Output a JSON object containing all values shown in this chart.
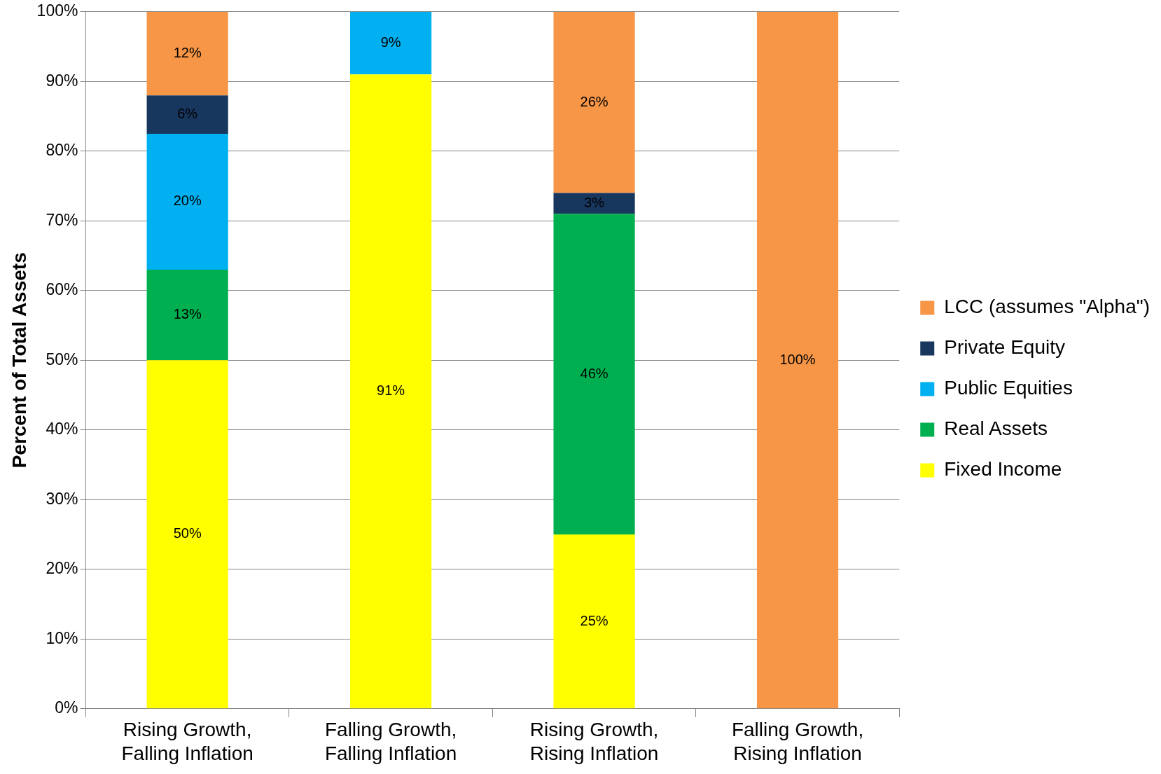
{
  "chart_data": {
    "type": "bar",
    "stacked": true,
    "ylabel": "Percent of Total Assets",
    "categories": [
      "Rising Growth, Falling Inflation",
      "Falling Growth, Falling Inflation",
      "Rising Growth, Rising Inflation",
      "Falling Growth, Rising Inflation"
    ],
    "series": [
      {
        "name": "Fixed Income",
        "color": "#ffff00",
        "values": [
          50,
          91,
          25,
          null
        ],
        "value_labels": [
          "50%",
          "91%",
          "25%",
          null
        ]
      },
      {
        "name": "Real Assets",
        "color": "#00b050",
        "values": [
          13,
          null,
          46,
          null
        ],
        "value_labels": [
          "13%",
          null,
          "46%",
          null
        ]
      },
      {
        "name": "Public Equities",
        "color": "#00b0f0",
        "values": [
          19.5,
          9,
          null,
          null
        ],
        "value_labels": [
          "20%",
          "9%",
          null,
          null
        ]
      },
      {
        "name": "Private Equity",
        "color": "#17375e",
        "values": [
          5.5,
          null,
          3,
          null
        ],
        "value_labels": [
          "6%",
          null,
          "3%",
          null
        ]
      },
      {
        "name": "LCC (assumes \"Alpha\")",
        "color": "#f79646",
        "values": [
          12,
          null,
          26,
          100
        ],
        "value_labels": [
          "12%",
          null,
          "26%",
          "100%"
        ]
      }
    ],
    "ylim": [
      0,
      100
    ],
    "yticks": [
      {
        "value": 0,
        "label": "0%"
      },
      {
        "value": 10,
        "label": "10%"
      },
      {
        "value": 20,
        "label": "20%"
      },
      {
        "value": 30,
        "label": "30%"
      },
      {
        "value": 40,
        "label": "40%"
      },
      {
        "value": 50,
        "label": "50%"
      },
      {
        "value": 60,
        "label": "60%"
      },
      {
        "value": 70,
        "label": "70%"
      },
      {
        "value": 80,
        "label": "80%"
      },
      {
        "value": 90,
        "label": "90%"
      },
      {
        "value": 100,
        "label": "100%"
      }
    ],
    "grid": "y",
    "legend": "right"
  }
}
